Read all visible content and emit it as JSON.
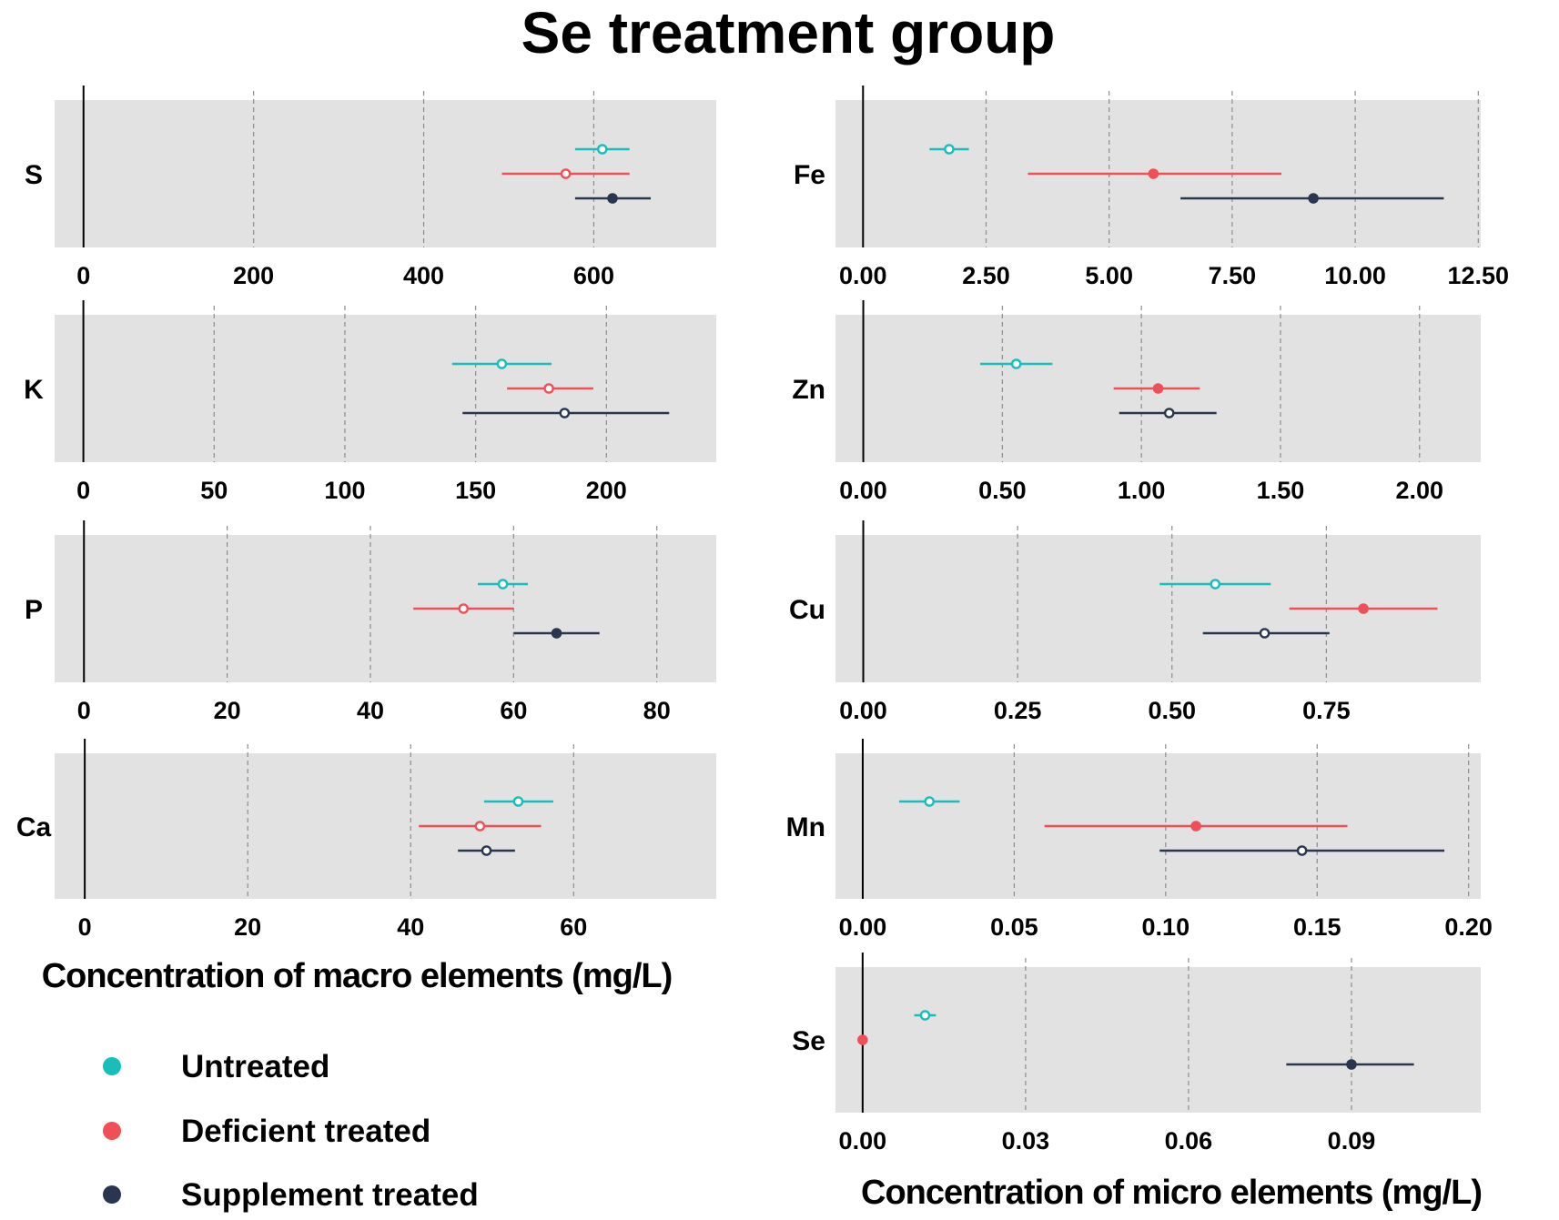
{
  "title": "Se treatment group",
  "colors": {
    "Untreated": "#17BEBB",
    "Deficient treated": "#EF4F56",
    "Supplement treated": "#2A3650",
    "panel_bg": "#E2E2E2",
    "grid": "#8C8C8C"
  },
  "legend": {
    "items": [
      {
        "label": "Untreated",
        "color_key": "Untreated"
      },
      {
        "label": "Deficient treated",
        "color_key": "Deficient treated"
      },
      {
        "label": "Supplement treated",
        "color_key": "Supplement treated"
      }
    ]
  },
  "chart_data": [
    {
      "type": "forest",
      "title": "Se treatment group",
      "xlabel": "Concentration of macro elements (mg/L)",
      "panels": [
        {
          "element": "S",
          "xlim": [
            -34,
            744
          ],
          "ticks": [
            0,
            200,
            400,
            600
          ],
          "tick_labels": [
            "0",
            "200",
            "400",
            "600"
          ],
          "series": [
            {
              "name": "Untreated",
              "mean": 610,
              "low": 578,
              "high": 642,
              "filled": false
            },
            {
              "name": "Deficient treated",
              "mean": 567,
              "low": 492,
              "high": 642,
              "filled": false
            },
            {
              "name": "Supplement treated",
              "mean": 622,
              "low": 578,
              "high": 667,
              "filled": true
            }
          ]
        },
        {
          "element": "K",
          "xlim": [
            -11,
            242
          ],
          "ticks": [
            0,
            50,
            100,
            150,
            200
          ],
          "tick_labels": [
            "0",
            "50",
            "100",
            "150",
            "200"
          ],
          "series": [
            {
              "name": "Untreated",
              "mean": 160,
              "low": 141,
              "high": 179,
              "filled": false
            },
            {
              "name": "Deficient treated",
              "mean": 178,
              "low": 162,
              "high": 195,
              "filled": false
            },
            {
              "name": "Supplement treated",
              "mean": 184,
              "low": 145,
              "high": 224,
              "filled": false
            }
          ]
        },
        {
          "element": "P",
          "xlim": [
            -4.1,
            88.3
          ],
          "ticks": [
            0,
            20,
            40,
            60,
            80
          ],
          "tick_labels": [
            "0",
            "20",
            "40",
            "60",
            "80"
          ],
          "series": [
            {
              "name": "Untreated",
              "mean": 58.5,
              "low": 55,
              "high": 62,
              "filled": false
            },
            {
              "name": "Deficient treated",
              "mean": 53,
              "low": 46,
              "high": 60,
              "filled": false
            },
            {
              "name": "Supplement treated",
              "mean": 66,
              "low": 60,
              "high": 72,
              "filled": true
            }
          ]
        },
        {
          "element": "Ca",
          "xlim": [
            -3.7,
            77.5
          ],
          "ticks": [
            0,
            20,
            40,
            60
          ],
          "tick_labels": [
            "0",
            "20",
            "40",
            "60"
          ],
          "series": [
            {
              "name": "Untreated",
              "mean": 53.2,
              "low": 49,
              "high": 57.5,
              "filled": false
            },
            {
              "name": "Deficient treated",
              "mean": 48.5,
              "low": 41,
              "high": 56,
              "filled": false
            },
            {
              "name": "Supplement treated",
              "mean": 49.3,
              "low": 45.8,
              "high": 52.8,
              "filled": false
            }
          ]
        }
      ]
    },
    {
      "type": "forest",
      "xlabel": "Concentration of micro elements (mg/L)",
      "panels": [
        {
          "element": "Fe",
          "xlim": [
            -0.56,
            12.55
          ],
          "ticks": [
            0,
            2.5,
            5,
            7.5,
            10,
            12.5
          ],
          "tick_labels": [
            "0.00",
            "2.50",
            "5.00",
            "7.50",
            "10.00",
            "12.50"
          ],
          "series": [
            {
              "name": "Untreated",
              "mean": 1.75,
              "low": 1.35,
              "high": 2.15,
              "filled": false
            },
            {
              "name": "Deficient treated",
              "mean": 5.9,
              "low": 3.35,
              "high": 8.5,
              "filled": true
            },
            {
              "name": "Supplement treated",
              "mean": 9.15,
              "low": 6.45,
              "high": 11.8,
              "filled": true
            }
          ]
        },
        {
          "element": "Zn",
          "xlim": [
            -0.1,
            2.22
          ],
          "ticks": [
            0,
            0.5,
            1,
            1.5,
            2
          ],
          "tick_labels": [
            "0.00",
            "0.50",
            "1.00",
            "1.50",
            "2.00"
          ],
          "series": [
            {
              "name": "Untreated",
              "mean": 0.55,
              "low": 0.42,
              "high": 0.68,
              "filled": false
            },
            {
              "name": "Deficient treated",
              "mean": 1.06,
              "low": 0.9,
              "high": 1.21,
              "filled": true
            },
            {
              "name": "Supplement treated",
              "mean": 1.1,
              "low": 0.92,
              "high": 1.27,
              "filled": false
            }
          ]
        },
        {
          "element": "Cu",
          "xlim": [
            -0.045,
            1.0
          ],
          "ticks": [
            0,
            0.25,
            0.5,
            0.75
          ],
          "tick_labels": [
            "0.00",
            "0.25",
            "0.50",
            "0.75"
          ],
          "series": [
            {
              "name": "Untreated",
              "mean": 0.57,
              "low": 0.48,
              "high": 0.66,
              "filled": false
            },
            {
              "name": "Deficient treated",
              "mean": 0.81,
              "low": 0.69,
              "high": 0.93,
              "filled": true
            },
            {
              "name": "Supplement treated",
              "mean": 0.65,
              "low": 0.55,
              "high": 0.755,
              "filled": false
            }
          ]
        },
        {
          "element": "Mn",
          "xlim": [
            -0.009,
            0.204
          ],
          "ticks": [
            0,
            0.05,
            0.1,
            0.15,
            0.2
          ],
          "tick_labels": [
            "0.00",
            "0.05",
            "0.10",
            "0.15",
            "0.20"
          ],
          "series": [
            {
              "name": "Untreated",
              "mean": 0.022,
              "low": 0.012,
              "high": 0.032,
              "filled": false
            },
            {
              "name": "Deficient treated",
              "mean": 0.11,
              "low": 0.06,
              "high": 0.16,
              "filled": true
            },
            {
              "name": "Supplement treated",
              "mean": 0.145,
              "low": 0.098,
              "high": 0.192,
              "filled": false
            }
          ]
        },
        {
          "element": "Se",
          "xlim": [
            -0.005,
            0.1138
          ],
          "ticks": [
            0,
            0.03,
            0.06,
            0.09
          ],
          "tick_labels": [
            "0.00",
            "0.03",
            "0.06",
            "0.09"
          ],
          "series": [
            {
              "name": "Untreated",
              "mean": 0.0115,
              "low": 0.0095,
              "high": 0.0135,
              "filled": false
            },
            {
              "name": "Deficient treated",
              "mean": 0.0,
              "low": 0.0,
              "high": 0.0,
              "filled": true
            },
            {
              "name": "Supplement treated",
              "mean": 0.09,
              "low": 0.078,
              "high": 0.1015,
              "filled": true
            }
          ]
        }
      ]
    }
  ]
}
